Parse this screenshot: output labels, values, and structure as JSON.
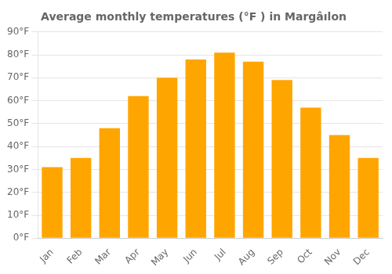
{
  "chart_data": {
    "type": "bar",
    "title": "Average monthly temperatures (°F ) in Margâılon",
    "categories": [
      "Jan",
      "Feb",
      "Mar",
      "Apr",
      "May",
      "Jun",
      "Jul",
      "Aug",
      "Sep",
      "Oct",
      "Nov",
      "Dec"
    ],
    "values": [
      31,
      35,
      48,
      62,
      70,
      78,
      81,
      77,
      69,
      57,
      45,
      35
    ],
    "color": "#FFA500",
    "ylim": [
      0,
      90
    ],
    "yticks": [
      {
        "value": 0,
        "label": "0°F"
      },
      {
        "value": 10,
        "label": "10°F"
      },
      {
        "value": 20,
        "label": "20°F"
      },
      {
        "value": 30,
        "label": "30°F"
      },
      {
        "value": 40,
        "label": "40°F"
      },
      {
        "value": 50,
        "label": "50°F"
      },
      {
        "value": 60,
        "label": "60°F"
      },
      {
        "value": 70,
        "label": "70°F"
      },
      {
        "value": 80,
        "label": "80°F"
      },
      {
        "value": 90,
        "label": "90°F"
      }
    ],
    "grid": true
  }
}
